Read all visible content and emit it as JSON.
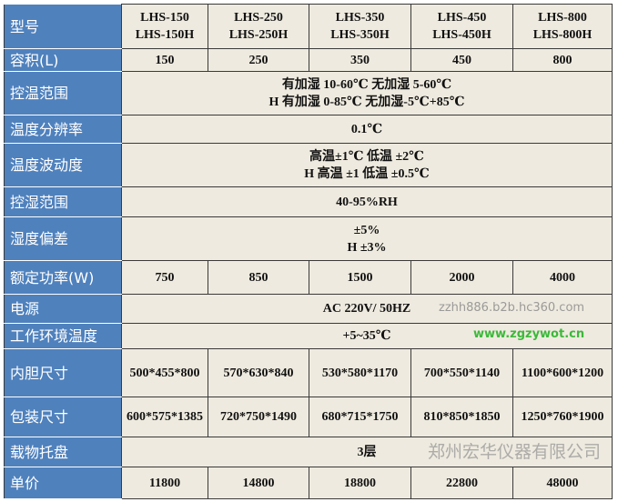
{
  "table": {
    "header": {
      "label": "型号",
      "models": [
        [
          "LHS-150",
          "LHS-150H"
        ],
        [
          "LHS-250",
          "LHS-250H"
        ],
        [
          "LHS-350",
          "LHS-350H"
        ],
        [
          "LHS-450",
          "LHS-450H"
        ],
        [
          "LHS-800",
          "LHS-800H"
        ]
      ]
    },
    "volume": {
      "label": "容积(L)",
      "values": [
        "150",
        "250",
        "350",
        "450",
        "800"
      ]
    },
    "temp_range": {
      "label": "控温范围",
      "lines": [
        "有加湿 10-60℃  无加湿 5-60℃",
        "H 有加湿 0-85℃  无加湿-5℃+85℃"
      ]
    },
    "temp_resolution": {
      "label": "温度分辨率",
      "value": "0.1℃"
    },
    "temp_fluctuation": {
      "label": "温度波动度",
      "lines": [
        "高温±1℃ 低温 ±2℃",
        "H 高温 ±1  低温 ±0.5℃"
      ]
    },
    "humidity_range": {
      "label": "控湿范围",
      "value": "40-95%RH"
    },
    "humidity_deviation": {
      "label": "湿度偏差",
      "lines": [
        "±5%",
        "H ±3%"
      ]
    },
    "power": {
      "label": "额定功率(W)",
      "values": [
        "750",
        "850",
        "1500",
        "2000",
        "4000"
      ]
    },
    "supply": {
      "label": "电源",
      "value": "AC 220V/  50HZ"
    },
    "ambient": {
      "label": "工作环境温度",
      "value": "+5~35℃"
    },
    "inner_size": {
      "label": "内胆尺寸",
      "values": [
        "500*455*800",
        "570*630*840",
        "530*580*1170",
        "700*550*1140",
        "1100*600*1200"
      ]
    },
    "package_size": {
      "label": "包装尺寸",
      "values": [
        "600*575*1385",
        "720*750*1490",
        "680*715*1750",
        "810*850*1850",
        "1250*760*1900"
      ]
    },
    "trays": {
      "label": "载物托盘",
      "value": "3层"
    },
    "price": {
      "label": "单价",
      "values": [
        "11800",
        "14800",
        "18800",
        "22800",
        "48000"
      ]
    }
  },
  "watermark": {
    "company": "郑州宏华仪器有限公司",
    "site": "zzhh886.b2b.hc360.com",
    "site2": "www.zgzywot.cn"
  },
  "colors": {
    "label_bg": "#4f81bd",
    "cell_bg": "#eeeadf"
  }
}
